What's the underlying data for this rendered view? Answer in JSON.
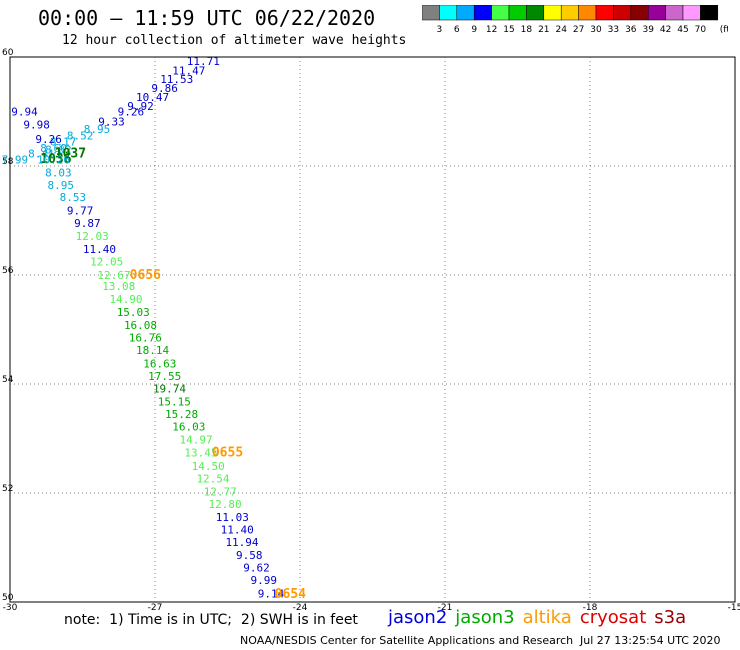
{
  "header": {
    "title": "00:00 – 11:59 UTC 06/22/2020",
    "subtitle": "12 hour collection of altimeter wave heights"
  },
  "colorbar": {
    "labels": [
      "3",
      "6",
      "9",
      "12",
      "15",
      "18",
      "21",
      "24",
      "27",
      "30",
      "33",
      "36",
      "39",
      "42",
      "45",
      "70"
    ],
    "unit": "(ft)",
    "colors": [
      "#808080",
      "#00ffff",
      "#00aaff",
      "#0000ff",
      "#44ff44",
      "#00cc00",
      "#008800",
      "#ffff00",
      "#ffcc00",
      "#ff8800",
      "#ff0000",
      "#cc0000",
      "#880000",
      "#990099",
      "#cc66cc",
      "#ff99ff",
      "#000000"
    ]
  },
  "map": {
    "lon_ticks": [
      "-30",
      "-27",
      "-24",
      "-21",
      "-18",
      "-15"
    ],
    "lat_ticks": [
      "60",
      "58",
      "56",
      "54",
      "52",
      "50"
    ],
    "lon_range": [
      -30,
      -15
    ],
    "lat_range": [
      50,
      60
    ],
    "grid": "dotted"
  },
  "observations": [
    {
      "text": "11.71",
      "lon": -26.0,
      "lat": 59.93,
      "color": "#0000cc"
    },
    {
      "text": "11.47",
      "lon": -26.3,
      "lat": 59.75,
      "color": "#0000cc"
    },
    {
      "text": "11.53",
      "lon": -26.55,
      "lat": 59.6,
      "color": "#0000cc"
    },
    {
      "text": "9.86",
      "lon": -26.8,
      "lat": 59.43,
      "color": "#0000cc"
    },
    {
      "text": "10.47",
      "lon": -27.05,
      "lat": 59.27,
      "color": "#0000cc"
    },
    {
      "text": "9.92",
      "lon": -27.3,
      "lat": 59.1,
      "color": "#0000cc"
    },
    {
      "text": "9.26",
      "lon": -27.5,
      "lat": 59.0,
      "color": "#0000cc"
    },
    {
      "text": "9.33",
      "lon": -27.9,
      "lat": 58.82,
      "color": "#0000cc"
    },
    {
      "text": "8.95",
      "lon": -28.2,
      "lat": 58.68,
      "color": "#00aadd"
    },
    {
      "text": "8.52",
      "lon": -28.55,
      "lat": 58.56,
      "color": "#00aadd"
    },
    {
      "text": "9.94",
      "lon": -29.7,
      "lat": 59.0,
      "color": "#0000cc"
    },
    {
      "text": "9.98",
      "lon": -29.45,
      "lat": 58.76,
      "color": "#0000cc"
    },
    {
      "text": "8.17",
      "lon": -28.9,
      "lat": 58.45,
      "color": "#00aadd"
    },
    {
      "text": "9.26",
      "lon": -29.2,
      "lat": 58.5,
      "color": "#0000cc"
    },
    {
      "text": "8.60",
      "lon": -29.1,
      "lat": 58.33,
      "color": "#00aadd"
    },
    {
      "text": "8.62",
      "lon": -29.0,
      "lat": 58.3,
      "color": "#00aadd"
    },
    {
      "text": "1037",
      "lon": -28.75,
      "lat": 58.23,
      "color": "#007700",
      "size": 13
    },
    {
      "text": "8.41",
      "lon": -29.35,
      "lat": 58.23,
      "color": "#00aadd"
    },
    {
      "text": "1036",
      "lon": -29.05,
      "lat": 58.13,
      "color": "#007700",
      "size": 13
    },
    {
      "text": "10.26",
      "lon": -29.1,
      "lat": 58.12,
      "color": "#00aadd"
    },
    {
      "text": "7.99",
      "lon": -29.9,
      "lat": 58.12,
      "color": "#00aadd"
    },
    {
      "text": "8.03",
      "lon": -29.0,
      "lat": 57.88,
      "color": "#00aadd"
    },
    {
      "text": "8.95",
      "lon": -28.95,
      "lat": 57.65,
      "color": "#00aadd"
    },
    {
      "text": "8.53",
      "lon": -28.7,
      "lat": 57.43,
      "color": "#00aadd"
    },
    {
      "text": "9.77",
      "lon": -28.55,
      "lat": 57.18,
      "color": "#0000cc"
    },
    {
      "text": "9.87",
      "lon": -28.4,
      "lat": 56.95,
      "color": "#0000cc"
    },
    {
      "text": "12.03",
      "lon": -28.3,
      "lat": 56.72,
      "color": "#55ee55"
    },
    {
      "text": "11.40",
      "lon": -28.15,
      "lat": 56.48,
      "color": "#0000cc"
    },
    {
      "text": "12.05",
      "lon": -28.0,
      "lat": 56.25,
      "color": "#55ee55"
    },
    {
      "text": "12.67",
      "lon": -27.85,
      "lat": 56.0,
      "color": "#55ee55"
    },
    {
      "text": "0656",
      "lon": -27.2,
      "lat": 56.0,
      "color": "#ff9900",
      "size": 13
    },
    {
      "text": "13.08",
      "lon": -27.75,
      "lat": 55.8,
      "color": "#55ee55"
    },
    {
      "text": "14.90",
      "lon": -27.6,
      "lat": 55.56,
      "color": "#55ee55"
    },
    {
      "text": "15.03",
      "lon": -27.45,
      "lat": 55.32,
      "color": "#00aa00"
    },
    {
      "text": "16.08",
      "lon": -27.3,
      "lat": 55.08,
      "color": "#00aa00"
    },
    {
      "text": "16.76",
      "lon": -27.2,
      "lat": 54.85,
      "color": "#00aa00"
    },
    {
      "text": "18.14",
      "lon": -27.05,
      "lat": 54.62,
      "color": "#00aa00"
    },
    {
      "text": "16.63",
      "lon": -26.9,
      "lat": 54.38,
      "color": "#00aa00"
    },
    {
      "text": "17.55",
      "lon": -26.8,
      "lat": 54.15,
      "color": "#00aa00"
    },
    {
      "text": "19.74",
      "lon": -26.7,
      "lat": 53.92,
      "color": "#007700"
    },
    {
      "text": "15.15",
      "lon": -26.6,
      "lat": 53.68,
      "color": "#00aa00"
    },
    {
      "text": "15.28",
      "lon": -26.45,
      "lat": 53.45,
      "color": "#00aa00"
    },
    {
      "text": "16.03",
      "lon": -26.3,
      "lat": 53.22,
      "color": "#00aa00"
    },
    {
      "text": "14.97",
      "lon": -26.15,
      "lat": 52.98,
      "color": "#55ee55"
    },
    {
      "text": "13.45",
      "lon": -26.05,
      "lat": 52.74,
      "color": "#55ee55"
    },
    {
      "text": "0655",
      "lon": -25.5,
      "lat": 52.74,
      "color": "#ff9900",
      "size": 13
    },
    {
      "text": "14.50",
      "lon": -25.9,
      "lat": 52.5,
      "color": "#55ee55"
    },
    {
      "text": "12.54",
      "lon": -25.8,
      "lat": 52.27,
      "color": "#55ee55"
    },
    {
      "text": "12.77",
      "lon": -25.65,
      "lat": 52.03,
      "color": "#55ee55"
    },
    {
      "text": "12.80",
      "lon": -25.55,
      "lat": 51.8,
      "color": "#55ee55"
    },
    {
      "text": "11.03",
      "lon": -25.4,
      "lat": 51.56,
      "color": "#0000cc"
    },
    {
      "text": "11.40",
      "lon": -25.3,
      "lat": 51.33,
      "color": "#0000cc"
    },
    {
      "text": "11.94",
      "lon": -25.2,
      "lat": 51.1,
      "color": "#0000cc"
    },
    {
      "text": "9.58",
      "lon": -25.05,
      "lat": 50.86,
      "color": "#0000cc"
    },
    {
      "text": "9.62",
      "lon": -24.9,
      "lat": 50.63,
      "color": "#0000cc"
    },
    {
      "text": "9.99",
      "lon": -24.75,
      "lat": 50.4,
      "color": "#0000cc"
    },
    {
      "text": "9.14",
      "lon": -24.6,
      "lat": 50.16,
      "color": "#0000cc"
    },
    {
      "text": "0654",
      "lon": -24.2,
      "lat": 50.15,
      "color": "#ff9900",
      "size": 13
    }
  ],
  "note": "note:  1) Time is in UTC;  2) SWH is in feet",
  "satellites": [
    {
      "name": "jason2",
      "color": "#0000dd"
    },
    {
      "name": "jason3",
      "color": "#00aa00"
    },
    {
      "name": "altika",
      "color": "#ff9900"
    },
    {
      "name": "cryosat",
      "color": "#dd0000"
    },
    {
      "name": "s3a",
      "color": "#990000"
    }
  ],
  "footer": {
    "agency": "NOAA/NESDIS Center for Satellite Applications and Research",
    "timestamp": "Jul 27 13:25:54 UTC 2020"
  }
}
